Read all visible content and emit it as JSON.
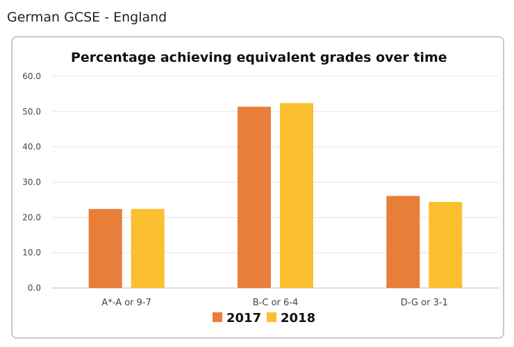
{
  "page": {
    "title": "German GCSE - England"
  },
  "colors": {
    "series_2017": "#E97E3A",
    "series_2018": "#FBBF2F",
    "grid": "#e3e3e3",
    "text": "#444444"
  },
  "chart_data": {
    "type": "bar",
    "title": "Percentage achieving equivalent grades over time",
    "xlabel": "",
    "ylabel": "",
    "categories": [
      "A*-A or 9-7",
      "B-C or 6-4",
      "D-G or 3-1"
    ],
    "series": [
      {
        "name": "2017",
        "values": [
          22.4,
          51.4,
          26.1
        ]
      },
      {
        "name": "2018",
        "values": [
          22.4,
          52.4,
          24.4
        ]
      }
    ],
    "ylim": [
      0,
      60
    ],
    "yticks": [
      "0.0",
      "10.0",
      "20.0",
      "30.0",
      "40.0",
      "50.0",
      "60.0"
    ],
    "grid": true,
    "legend": "bottom-center"
  }
}
